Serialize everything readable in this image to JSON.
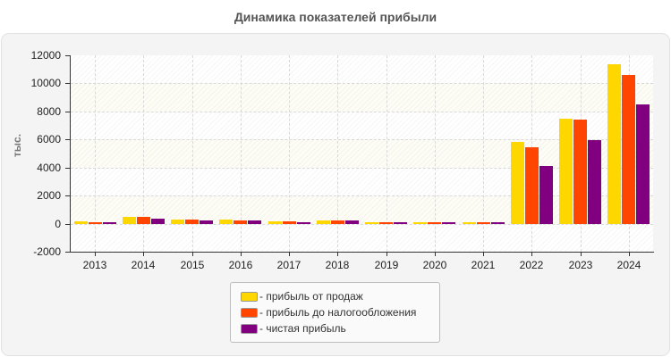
{
  "title": "Динамика показателей прибыли",
  "y_axis_label": "тыс.",
  "legend": [
    {
      "label": "- прибыль от продаж",
      "color": "#FFD700"
    },
    {
      "label": "- прибыль до налогообложения",
      "color": "#FF4500"
    },
    {
      "label": "- чистая прибыль",
      "color": "#800080"
    }
  ],
  "y_ticks": [
    "12000",
    "10000",
    "8000",
    "6000",
    "4000",
    "2000",
    "0",
    "-2000"
  ],
  "x_ticks": [
    "2013",
    "2014",
    "2015",
    "2016",
    "2017",
    "2018",
    "2019",
    "2020",
    "2021",
    "2022",
    "2023",
    "2024"
  ],
  "chart_data": {
    "type": "bar",
    "title": "Динамика показателей прибыли",
    "xlabel": "",
    "ylabel": "тыс.",
    "ylim": [
      -2000,
      12000
    ],
    "grid": true,
    "legend_position": "bottom",
    "categories": [
      "2013",
      "2014",
      "2015",
      "2016",
      "2017",
      "2018",
      "2019",
      "2020",
      "2021",
      "2022",
      "2023",
      "2024"
    ],
    "series": [
      {
        "name": "прибыль от продаж",
        "color": "#FFD700",
        "values": [
          150,
          460,
          320,
          320,
          190,
          250,
          130,
          130,
          130,
          5840,
          7500,
          11380
        ]
      },
      {
        "name": "прибыль до налогообложения",
        "color": "#FF4500",
        "values": [
          130,
          460,
          320,
          250,
          190,
          250,
          130,
          130,
          130,
          5460,
          7430,
          10600
        ]
      },
      {
        "name": "чистая прибыль",
        "color": "#800080",
        "values": [
          130,
          380,
          250,
          250,
          130,
          250,
          130,
          130,
          130,
          4130,
          5970,
          8500
        ]
      }
    ]
  }
}
